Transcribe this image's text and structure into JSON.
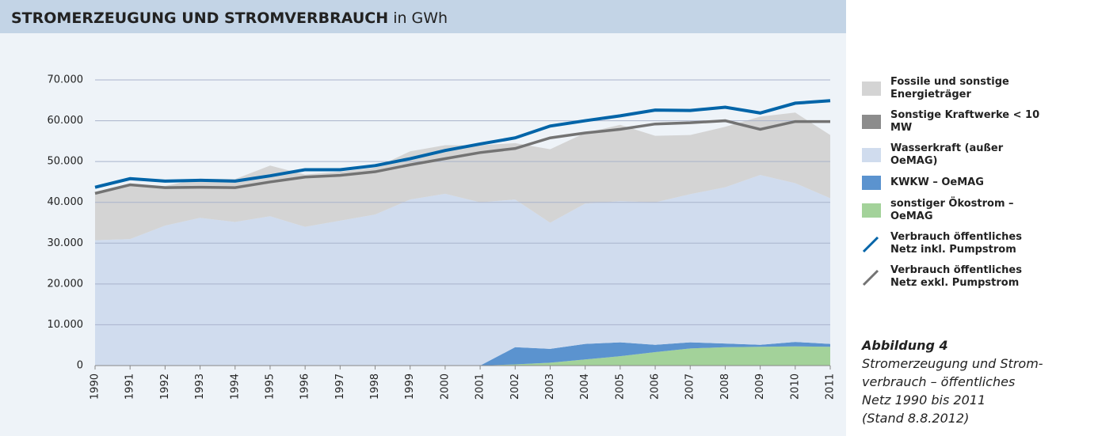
{
  "chart_data": {
    "type": "stacked-area-line",
    "title": "STROMERZEUGUNG UND STROMVERBRAUCH",
    "unit": "in GWh",
    "categories": [
      "1990",
      "1991",
      "1992",
      "1993",
      "1994",
      "1995",
      "1996",
      "1997",
      "1998",
      "1999",
      "2000",
      "2001",
      "2002",
      "2003",
      "2004",
      "2005",
      "2006",
      "2007",
      "2008",
      "2009",
      "2010",
      "2011"
    ],
    "ylim": [
      0,
      70000
    ],
    "yticks": [
      0,
      {
        "value": 10000,
        "label": "10.000"
      },
      {
        "value": 20000,
        "label": "20.000"
      },
      {
        "value": 30000,
        "label": "30.000"
      },
      {
        "value": 40000,
        "label": "40.000"
      },
      {
        "value": 50000,
        "label": "50.000"
      },
      {
        "value": 60000,
        "label": "60.000"
      },
      {
        "value": 70000,
        "label": "70.000"
      }
    ],
    "grid": true,
    "series": [
      {
        "name": "sonstiger Ökostrom – OeMAG",
        "kind": "area",
        "color": "#a3d29a",
        "values": [
          0,
          0,
          0,
          0,
          0,
          0,
          0,
          0,
          0,
          0,
          0,
          0,
          300,
          700,
          1500,
          2300,
          3300,
          4200,
          4500,
          4600,
          4700,
          4600
        ]
      },
      {
        "name": "KWKW – OeMAG",
        "kind": "area",
        "color": "#5b93cf",
        "values": [
          0,
          0,
          0,
          0,
          0,
          0,
          0,
          0,
          0,
          0,
          0,
          0,
          4200,
          3400,
          3800,
          3400,
          1800,
          1500,
          900,
          500,
          1100,
          700
        ]
      },
      {
        "name": "Wasserkraft (außer OeMAG)",
        "kind": "area",
        "color": "#d0dcee",
        "values": [
          30700,
          31000,
          34300,
          36200,
          35200,
          36600,
          34000,
          35500,
          37000,
          40700,
          42100,
          40000,
          36200,
          30900,
          34400,
          34600,
          34900,
          36300,
          38300,
          41600,
          38900,
          35700
        ]
      },
      {
        "name": "Sonstige Kraftwerke < 10 MW",
        "kind": "area",
        "color": "#8c8c8c",
        "values": [
          0,
          0,
          0,
          0,
          0,
          0,
          0,
          0,
          0,
          0,
          0,
          0,
          0,
          0,
          0,
          0,
          0,
          0,
          0,
          0,
          0,
          0
        ]
      },
      {
        "name": "Fossile und sonstige Energieträger",
        "kind": "area",
        "color": "#d4d4d4",
        "values": [
          11300,
          13500,
          9700,
          9600,
          10500,
          12400,
          12800,
          12000,
          11500,
          11800,
          11900,
          14000,
          13800,
          18000,
          17300,
          18700,
          16300,
          14500,
          14800,
          14300,
          17300,
          15500
        ]
      },
      {
        "name": "Verbrauch öffentliches Netz inkl. Pumpstrom",
        "kind": "line",
        "color": "#0064a8",
        "values": [
          43700,
          45800,
          45200,
          45400,
          45200,
          46500,
          48000,
          48000,
          49000,
          50700,
          52700,
          54300,
          55800,
          58700,
          60000,
          61200,
          62600,
          62500,
          63300,
          61900,
          64300,
          64900
        ]
      },
      {
        "name": "Verbrauch öffentliches Netz exkl. Pumpstrom",
        "kind": "line",
        "color": "#737373",
        "values": [
          42200,
          44300,
          43600,
          43700,
          43600,
          45000,
          46200,
          46600,
          47500,
          49200,
          50700,
          52200,
          53200,
          55800,
          57000,
          57900,
          59200,
          59500,
          60000,
          57900,
          59800,
          59800
        ]
      }
    ]
  },
  "caption": {
    "label": "Abbildung 4",
    "lines": [
      "Stromerzeugung und Strom-",
      "verbrauch – öffentliches",
      "Netz 1990 bis 2011",
      "(Stand 8.8.2012)"
    ]
  }
}
